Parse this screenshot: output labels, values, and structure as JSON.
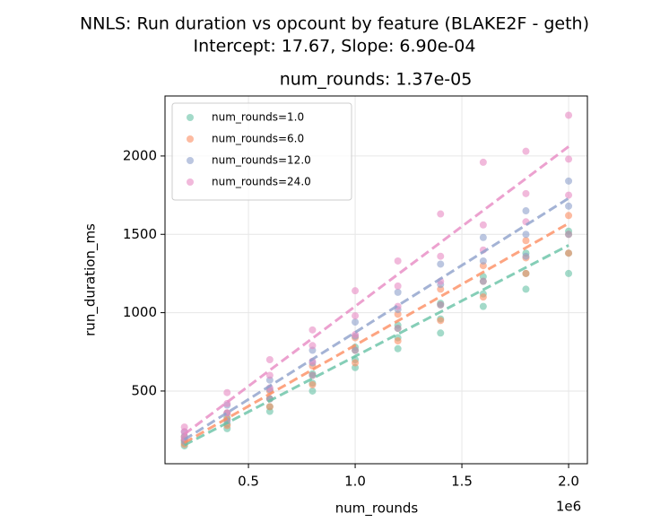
{
  "chart_data": {
    "type": "scatter",
    "title": "NNLS: Run duration vs opcount by feature (BLAKE2F - geth)",
    "subtitle": "Intercept: 17.67, Slope: 6.90e-04",
    "axes_title": "num_rounds: 1.37e-05",
    "x_label": "num_rounds",
    "y_label": "run_duration_ms",
    "x_offset_label": "1e6",
    "xlim": [
      109000,
      2088000
    ],
    "ylim": [
      36,
      2383
    ],
    "xticks": [
      {
        "value": 500000,
        "label": "0.5"
      },
      {
        "value": 1000000,
        "label": "1.0"
      },
      {
        "value": 1500000,
        "label": "1.5"
      },
      {
        "value": 2000000,
        "label": "2.0"
      }
    ],
    "yticks": [
      500,
      1000,
      1500,
      2000
    ],
    "grid": true,
    "legend": "upper-left",
    "series": [
      {
        "name": "num_rounds=1.0",
        "color": "#66c2a5",
        "x": [
          200000,
          200000,
          200000,
          400000,
          400000,
          400000,
          600000,
          600000,
          600000,
          800000,
          800000,
          800000,
          1000000,
          1000000,
          1000000,
          1200000,
          1200000,
          1200000,
          1400000,
          1400000,
          1400000,
          1600000,
          1600000,
          1600000,
          1800000,
          1800000,
          1800000,
          2000000,
          2000000,
          2000000
        ],
        "values": [
          150,
          170,
          190,
          260,
          290,
          330,
          370,
          400,
          450,
          500,
          550,
          610,
          650,
          700,
          780,
          770,
          840,
          920,
          870,
          960,
          1060,
          1040,
          1120,
          1230,
          1150,
          1250,
          1380,
          1250,
          1380,
          1520
        ]
      },
      {
        "name": "num_rounds=6.0",
        "color": "#fc8d62",
        "x": [
          200000,
          200000,
          200000,
          400000,
          400000,
          400000,
          600000,
          600000,
          600000,
          800000,
          800000,
          800000,
          1000000,
          1000000,
          1000000,
          1200000,
          1200000,
          1200000,
          1400000,
          1400000,
          1400000,
          1600000,
          1600000,
          1600000,
          1800000,
          1800000,
          1800000,
          2000000,
          2000000,
          2000000
        ],
        "values": [
          160,
          185,
          210,
          280,
          320,
          360,
          400,
          450,
          500,
          540,
          600,
          660,
          680,
          760,
          840,
          820,
          900,
          990,
          950,
          1050,
          1150,
          1100,
          1200,
          1300,
          1250,
          1350,
          1460,
          1380,
          1500,
          1620
        ]
      },
      {
        "name": "num_rounds=12.0",
        "color": "#8da0cb",
        "x": [
          200000,
          200000,
          200000,
          400000,
          400000,
          400000,
          600000,
          600000,
          600000,
          800000,
          800000,
          800000,
          1000000,
          1000000,
          1000000,
          1200000,
          1200000,
          1200000,
          1400000,
          1400000,
          1400000,
          1600000,
          1600000,
          1600000,
          1800000,
          1800000,
          1800000,
          2000000,
          2000000,
          2000000
        ],
        "values": [
          180,
          210,
          240,
          310,
          360,
          410,
          450,
          510,
          570,
          600,
          680,
          760,
          760,
          850,
          940,
          900,
          1020,
          1130,
          1050,
          1180,
          1310,
          1200,
          1330,
          1480,
          1360,
          1500,
          1650,
          1500,
          1680,
          1840
        ]
      },
      {
        "name": "num_rounds=24.0",
        "color": "#e78ac3",
        "x": [
          200000,
          200000,
          200000,
          400000,
          400000,
          400000,
          600000,
          600000,
          600000,
          800000,
          800000,
          800000,
          1000000,
          1000000,
          1000000,
          1200000,
          1200000,
          1200000,
          1400000,
          1400000,
          1400000,
          1600000,
          1600000,
          1600000,
          1800000,
          1800000,
          1800000,
          2000000,
          2000000,
          2000000
        ],
        "values": [
          200,
          240,
          270,
          360,
          420,
          490,
          520,
          600,
          700,
          690,
          790,
          890,
          860,
          980,
          1140,
          1040,
          1170,
          1330,
          1200,
          1360,
          1630,
          1400,
          1560,
          1960,
          1580,
          1760,
          2030,
          1750,
          1980,
          2260
        ]
      }
    ],
    "fit_lines": [
      {
        "color": "#66c2a5",
        "x": [
          200000,
          2000000
        ],
        "values": [
          155,
          1430
        ]
      },
      {
        "color": "#fc8d62",
        "x": [
          200000,
          2000000
        ],
        "values": [
          170,
          1570
        ]
      },
      {
        "color": "#8da0cb",
        "x": [
          200000,
          2000000
        ],
        "values": [
          190,
          1730
        ]
      },
      {
        "color": "#e78ac3",
        "x": [
          200000,
          2000000
        ],
        "values": [
          225,
          2060
        ]
      }
    ]
  }
}
